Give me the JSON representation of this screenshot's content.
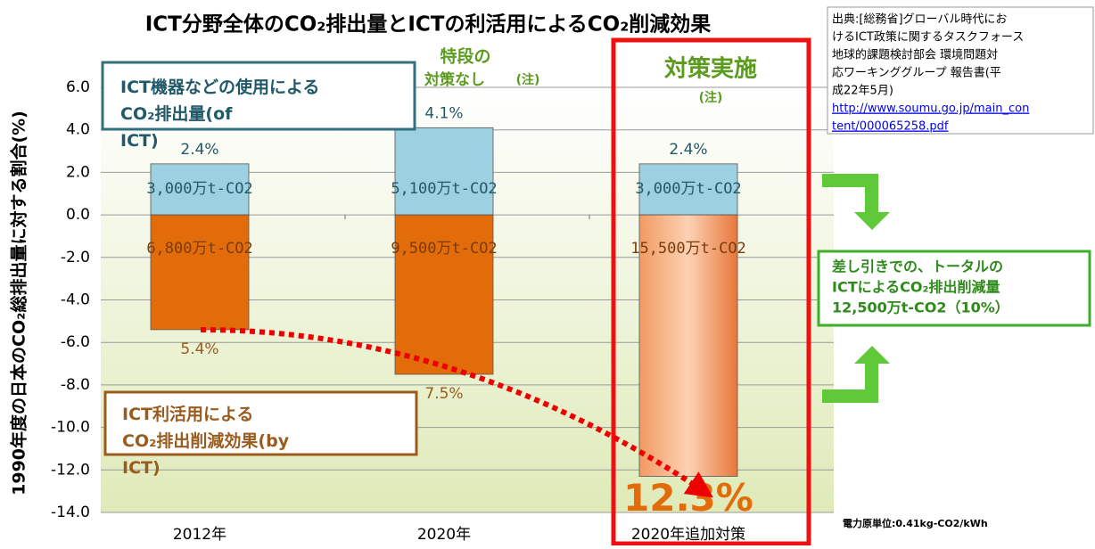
{
  "chart_data": {
    "type": "bar",
    "title": "ICT分野全体のCO₂排出量とICTの利活用によるCO₂削減効果",
    "y_label": "1990年度の日本のCO₂総排出量に対する割合(%)",
    "categories": [
      "2012年",
      "2020年",
      "2020年追加対策"
    ],
    "series": [
      {
        "name": "ICT機器などの使用による CO₂排出量(of ICT)",
        "color": "#9dd0e0",
        "values": [
          2.4,
          4.1,
          2.4
        ],
        "value_labels": [
          "2.4%",
          "4.1%",
          "2.4%"
        ],
        "amount_labels": [
          "3,000万t-CO2",
          "5,100万t-CO2",
          "3,000万t-CO2"
        ]
      },
      {
        "name": "ICT利活用による CO₂排出削減効果(by ICT)",
        "color": "#e36c0a",
        "values": [
          -5.4,
          -7.5,
          -12.3
        ],
        "value_labels": [
          "5.4%",
          "7.5%",
          "12.3%"
        ],
        "amount_labels": [
          "6,800万t-CO2",
          "9,500万t-CO2",
          "15,500万t-CO2"
        ]
      }
    ],
    "ylim": [
      -14,
      6
    ],
    "yticks": [
      {
        "value": 6,
        "label": "6.0"
      },
      {
        "value": 4,
        "label": "4.0"
      },
      {
        "value": 2,
        "label": "2.0"
      },
      {
        "value": 0,
        "label": "0.0"
      },
      {
        "value": -2,
        "label": "-2.0"
      },
      {
        "value": -4,
        "label": "-4.0"
      },
      {
        "value": -6,
        "label": "-6.0"
      },
      {
        "value": -8,
        "label": "-8.0"
      },
      {
        "value": -10,
        "label": "-10.0"
      },
      {
        "value": -12,
        "label": "-12.0"
      },
      {
        "value": -14,
        "label": "-14.0"
      }
    ],
    "grid": true,
    "annotations": {
      "no_measure": [
        "特段の",
        "対策なし",
        "(注)"
      ],
      "measure": [
        "対策実施",
        "(注)"
      ],
      "source": [
        "出典:[総務省]グローバル時代にお",
        "けるICT政策に関するタスクフォース",
        "地球的課題検討部会 環境問題対",
        "応ワーキンググループ 報告書(平",
        "成22年5月)"
      ],
      "source_url": [
        "http://www.soumu.go.jp/main_con",
        "tent/000065258.pdf"
      ],
      "total": [
        "差し引きでの、トータルの",
        "ICTによるCO₂排出削減量",
        "12,500万t-CO2（10%）"
      ],
      "unit_note": "電力原単位:0.41kg-CO2/kWh"
    }
  }
}
